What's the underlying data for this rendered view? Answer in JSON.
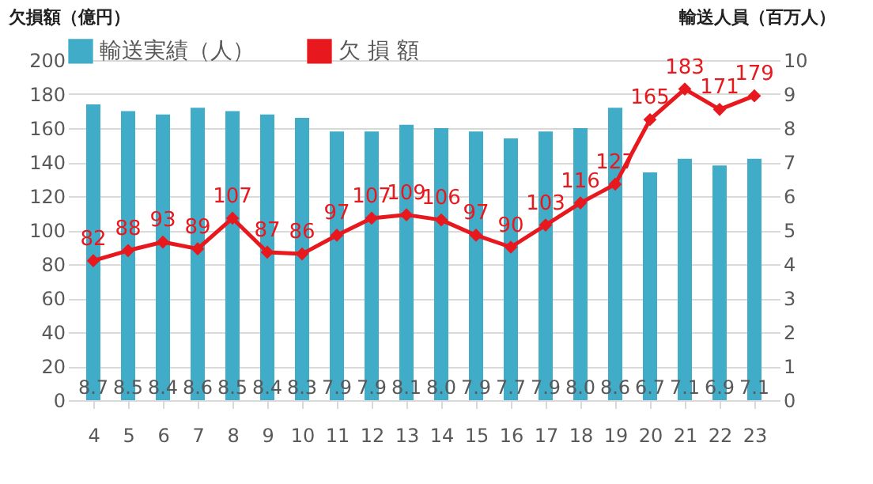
{
  "chart_data": {
    "type": "bar",
    "ylabel": "欠損額（億円）",
    "y2label": "輸送人員（百万人）",
    "categories": [
      "4",
      "5",
      "6",
      "7",
      "8",
      "9",
      "10",
      "11",
      "12",
      "13",
      "14",
      "15",
      "16",
      "17",
      "18",
      "19",
      "20",
      "21",
      "22",
      "23"
    ],
    "series": [
      {
        "name": "輸送実績（人）",
        "axis": "y2",
        "color": "#41acc8",
        "values": [
          8.7,
          8.5,
          8.4,
          8.6,
          8.5,
          8.4,
          8.3,
          7.9,
          7.9,
          8.1,
          8.0,
          7.9,
          7.7,
          7.9,
          8.0,
          8.6,
          6.7,
          7.1,
          6.9,
          7.1
        ],
        "value_labels": [
          "8.7",
          "8.5",
          "8.4",
          "8.6",
          "8.5",
          "8.4",
          "8.3",
          "7.9",
          "7.9",
          "8.1",
          "8.0",
          "7.9",
          "7.7",
          "7.9",
          "8.0",
          "8.6",
          "6.7",
          "7.1",
          "6.9",
          "7.1"
        ]
      },
      {
        "name": "欠 損 額",
        "type": "line",
        "color": "#e8191e",
        "marker": "diamond",
        "values": [
          82,
          88,
          93,
          89,
          107,
          87,
          86,
          97,
          107,
          109,
          106,
          97,
          90,
          103,
          116,
          127,
          165,
          183,
          171,
          179
        ]
      }
    ],
    "ylim": [
      0,
      200
    ],
    "yticks": [
      0,
      20,
      40,
      60,
      80,
      100,
      120,
      140,
      160,
      180,
      200
    ],
    "y2lim": [
      0,
      10
    ],
    "y2ticks": [
      0,
      1,
      2,
      3,
      4,
      5,
      6,
      7,
      8,
      9,
      10
    ],
    "grid": "y",
    "legend": "top",
    "data_labels": true
  }
}
